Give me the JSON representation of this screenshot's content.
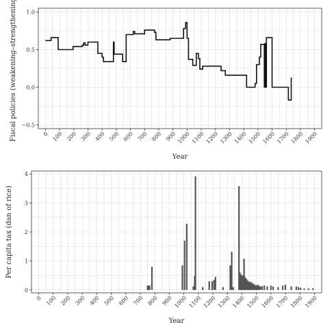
{
  "chart_data": [
    {
      "type": "line",
      "title": "",
      "xlabel": "Year",
      "ylabel": "Fiscal policies (weakening–strengthening)",
      "xlim": [
        -50,
        1950
      ],
      "ylim": [
        -0.55,
        1.05
      ],
      "xticks": [
        0,
        100,
        200,
        300,
        400,
        500,
        600,
        700,
        800,
        900,
        1000,
        1100,
        1200,
        1300,
        1400,
        1500,
        1600,
        1700,
        1800,
        1900
      ],
      "xtick_labels": [
        "0",
        "100",
        "200",
        "300",
        "400",
        "500",
        "600",
        "700",
        "800",
        "900",
        "1000",
        "1100",
        "1200",
        "1300",
        "1400",
        "1500",
        "1600",
        "1700",
        "1800",
        "1900"
      ],
      "yticks": [
        -0.5,
        0.0,
        0.5,
        1.0
      ],
      "ytick_labels": [
        "−0.5",
        "0.0",
        "0.5",
        "1.0"
      ],
      "grid": true,
      "series": [
        {
          "x": [
            0,
            0,
            40,
            40,
            90,
            90,
            195,
            195,
            260,
            260,
            270,
            270,
            280,
            280,
            300,
            300,
            370,
            370,
            400,
            400,
            410,
            410,
            480,
            480,
            485,
            485,
            500,
            500,
            545,
            545,
            560,
            560,
            570,
            570,
            615,
            615,
            620,
            620,
            630,
            630,
            700,
            700,
            770,
            770,
            780,
            780,
            880,
            880,
            975,
            975,
            990,
            990,
            1000,
            1000,
            1010,
            1010,
            1040,
            1040,
            1065,
            1065,
            1080,
            1080,
            1090,
            1090,
            1110,
            1110,
            1240,
            1240,
            1270,
            1270,
            1320,
            1320,
            1370,
            1370,
            1420,
            1420,
            1460,
            1460,
            1480,
            1480,
            1490,
            1490,
            1510,
            1510,
            1520,
            1520,
            1545,
            1545,
            1550,
            1550,
            1555,
            1555,
            1560,
            1560,
            1600,
            1600,
            1655,
            1655,
            1715,
            1715,
            1735,
            1735,
            1740
          ],
          "y": [
            0.62,
            0.62,
            0.62,
            0.66,
            0.66,
            0.5,
            0.5,
            0.54,
            0.54,
            0.56,
            0.56,
            0.59,
            0.59,
            0.56,
            0.56,
            0.6,
            0.6,
            0.45,
            0.45,
            0.4,
            0.4,
            0.34,
            0.34,
            0.6,
            0.6,
            0.44,
            0.44,
            0.44,
            0.44,
            0.34,
            0.34,
            0.34,
            0.34,
            0.7,
            0.7,
            0.7,
            0.7,
            0.74,
            0.74,
            0.71,
            0.71,
            0.76,
            0.76,
            0.73,
            0.73,
            0.63,
            0.63,
            0.65,
            0.65,
            0.78,
            0.78,
            0.86,
            0.86,
            0.65,
            0.65,
            0.37,
            0.37,
            0.29,
            0.29,
            0.45,
            0.45,
            0.38,
            0.38,
            0.24,
            0.24,
            0.28,
            0.28,
            0.22,
            0.22,
            0.16,
            0.16,
            0.16,
            0.16,
            0.16,
            0.16,
            0.0,
            0.0,
            0.0,
            0.0,
            0.05,
            0.05,
            0.3,
            0.3,
            0.4,
            0.4,
            0.57,
            0.57,
            0.0,
            0.0,
            0.58,
            0.58,
            0.0,
            0.0,
            0.66,
            0.66,
            0.0,
            0.0,
            0.0,
            0.0,
            -0.17,
            -0.17,
            0.12,
            0.12
          ]
        }
      ]
    },
    {
      "type": "bar",
      "title": "",
      "xlabel": "Year",
      "ylabel": "Per capita tax (dan of rice)",
      "xlim": [
        -50,
        1950
      ],
      "ylim": [
        -0.1,
        4.1
      ],
      "xticks": [
        0,
        100,
        200,
        300,
        400,
        500,
        600,
        700,
        800,
        900,
        1000,
        1100,
        1200,
        1300,
        1400,
        1500,
        1600,
        1700,
        1800,
        1900
      ],
      "xtick_labels": [
        "0",
        "100",
        "200",
        "300",
        "400",
        "500",
        "600",
        "700",
        "800",
        "900",
        "1000",
        "1100",
        "1200",
        "1300",
        "1400",
        "1500",
        "1600",
        "1700",
        "1800",
        "1900"
      ],
      "yticks": [
        0,
        1,
        2,
        3,
        4
      ],
      "ytick_labels": [
        "0",
        "1",
        "2",
        "3",
        "4"
      ],
      "grid": true,
      "bars": [
        {
          "x": 750,
          "value": 0.15
        },
        {
          "x": 757,
          "value": 0.15
        },
        {
          "x": 764,
          "value": 0.15
        },
        {
          "x": 780,
          "value": 0.8
        },
        {
          "x": 990,
          "value": 0.85
        },
        {
          "x": 1005,
          "value": 1.7
        },
        {
          "x": 1020,
          "value": 2.28
        },
        {
          "x": 1065,
          "value": 0.12
        },
        {
          "x": 1075,
          "value": 0.48
        },
        {
          "x": 1080,
          "value": 3.92
        },
        {
          "x": 1130,
          "value": 0.1
        },
        {
          "x": 1175,
          "value": 0.3
        },
        {
          "x": 1195,
          "value": 0.3
        },
        {
          "x": 1208,
          "value": 0.35
        },
        {
          "x": 1218,
          "value": 0.45
        },
        {
          "x": 1270,
          "value": 0.1
        },
        {
          "x": 1320,
          "value": 0.85
        },
        {
          "x": 1330,
          "value": 1.32
        },
        {
          "x": 1340,
          "value": 0.1
        },
        {
          "x": 1380,
          "value": 3.58
        },
        {
          "x": 1385,
          "value": 0.62
        },
        {
          "x": 1392,
          "value": 0.55
        },
        {
          "x": 1398,
          "value": 0.5
        },
        {
          "x": 1404,
          "value": 0.5
        },
        {
          "x": 1410,
          "value": 0.48
        },
        {
          "x": 1415,
          "value": 1.08
        },
        {
          "x": 1420,
          "value": 0.45
        },
        {
          "x": 1426,
          "value": 0.4
        },
        {
          "x": 1432,
          "value": 0.38
        },
        {
          "x": 1438,
          "value": 0.33
        },
        {
          "x": 1444,
          "value": 0.3
        },
        {
          "x": 1450,
          "value": 0.28
        },
        {
          "x": 1456,
          "value": 0.25
        },
        {
          "x": 1462,
          "value": 0.28
        },
        {
          "x": 1468,
          "value": 0.2
        },
        {
          "x": 1474,
          "value": 0.24
        },
        {
          "x": 1480,
          "value": 0.18
        },
        {
          "x": 1486,
          "value": 0.2
        },
        {
          "x": 1492,
          "value": 0.15
        },
        {
          "x": 1500,
          "value": 0.15
        },
        {
          "x": 1508,
          "value": 0.18
        },
        {
          "x": 1518,
          "value": 0.15
        },
        {
          "x": 1528,
          "value": 0.12
        },
        {
          "x": 1540,
          "value": 0.13
        },
        {
          "x": 1555,
          "value": 0.15
        },
        {
          "x": 1575,
          "value": 0.12
        },
        {
          "x": 1600,
          "value": 0.15
        },
        {
          "x": 1615,
          "value": 0.12
        },
        {
          "x": 1650,
          "value": 0.1
        },
        {
          "x": 1682,
          "value": 0.15
        },
        {
          "x": 1700,
          "value": 0.18
        },
        {
          "x": 1740,
          "value": 0.12
        },
        {
          "x": 1775,
          "value": 0.12
        },
        {
          "x": 1790,
          "value": 0.1
        },
        {
          "x": 1805,
          "value": 0.08
        },
        {
          "x": 1830,
          "value": 0.05
        },
        {
          "x": 1860,
          "value": 0.05
        },
        {
          "x": 1890,
          "value": 0.06
        }
      ]
    }
  ]
}
